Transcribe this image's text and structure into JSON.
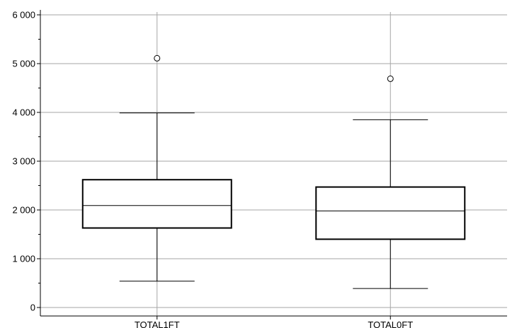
{
  "chart_data": {
    "type": "box",
    "categories": [
      "TOTAL1FT",
      "TOTAL0FT"
    ],
    "boxes": [
      {
        "name": "TOTAL1FT",
        "whisker_low": 540,
        "q1": 1630,
        "median": 2090,
        "q3": 2620,
        "whisker_high": 3990,
        "outliers": [
          5110
        ]
      },
      {
        "name": "TOTAL0FT",
        "whisker_low": 390,
        "q1": 1400,
        "median": 1980,
        "q3": 2470,
        "whisker_high": 3850,
        "outliers": [
          4690
        ]
      }
    ],
    "y_ticks": [
      {
        "value": 0,
        "label": "0"
      },
      {
        "value": 1000,
        "label": "1 000"
      },
      {
        "value": 2000,
        "label": "2 000"
      },
      {
        "value": 3000,
        "label": "3 000"
      },
      {
        "value": 4000,
        "label": "4 000"
      },
      {
        "value": 5000,
        "label": "5 000"
      },
      {
        "value": 6000,
        "label": "6 000"
      }
    ],
    "ylim": [
      -120,
      6150
    ],
    "grid": true,
    "title": "",
    "xlabel": "",
    "ylabel": ""
  }
}
